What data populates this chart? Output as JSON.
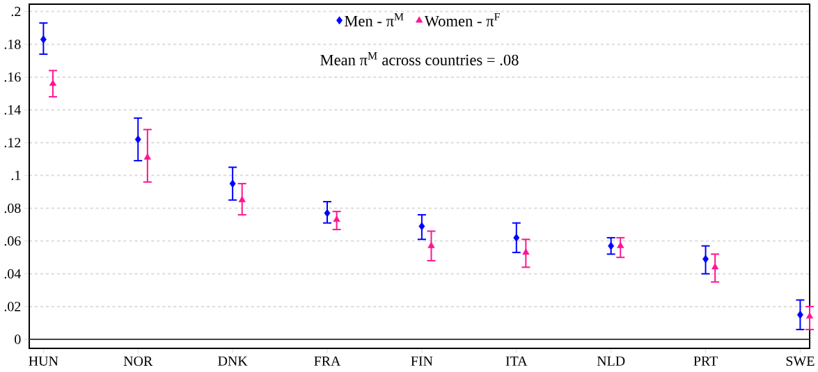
{
  "chart_data": {
    "type": "scatter",
    "categories": [
      "HUN",
      "NOR",
      "DNK",
      "FRA",
      "FIN",
      "ITA",
      "NLD",
      "PRT",
      "SWE"
    ],
    "series": [
      {
        "name": "Men - π$^{M}$",
        "color": "#0000ff",
        "marker": "diamond",
        "values": [
          0.183,
          0.122,
          0.095,
          0.077,
          0.069,
          0.062,
          0.057,
          0.049,
          0.015
        ],
        "errors": [
          [
            0.174,
            0.193
          ],
          [
            0.109,
            0.135
          ],
          [
            0.085,
            0.105
          ],
          [
            0.071,
            0.084
          ],
          [
            0.061,
            0.076
          ],
          [
            0.053,
            0.071
          ],
          [
            0.052,
            0.062
          ],
          [
            0.04,
            0.057
          ],
          [
            0.006,
            0.024
          ]
        ]
      },
      {
        "name": "Women - π$^{F}$",
        "color": "#ff1493",
        "marker": "triangle",
        "values": [
          0.156,
          0.111,
          0.085,
          0.073,
          0.057,
          0.053,
          0.057,
          0.044,
          0.014
        ],
        "errors": [
          [
            0.148,
            0.164
          ],
          [
            0.096,
            0.128
          ],
          [
            0.076,
            0.095
          ],
          [
            0.067,
            0.078
          ],
          [
            0.048,
            0.066
          ],
          [
            0.044,
            0.061
          ],
          [
            0.05,
            0.062
          ],
          [
            0.035,
            0.052
          ],
          [
            0.006,
            0.02
          ]
        ]
      }
    ],
    "ylim": [
      -0.0055,
      0.2045
    ],
    "yticks": [
      {
        "value": 0,
        "label": "0"
      },
      {
        "value": 0.02,
        "label": ".02"
      },
      {
        "value": 0.04,
        "label": ".04"
      },
      {
        "value": 0.06,
        "label": ".06"
      },
      {
        "value": 0.08,
        "label": ".08"
      },
      {
        "value": 0.1,
        "label": ".1"
      },
      {
        "value": 0.12,
        "label": ".12"
      },
      {
        "value": 0.14,
        "label": ".14"
      },
      {
        "value": 0.16,
        "label": ".16"
      },
      {
        "value": 0.18,
        "label": ".18"
      },
      {
        "value": 0.2,
        "label": ".2"
      }
    ],
    "grid": "y",
    "legend": "top",
    "ref_lines": [
      {
        "axis": "y",
        "value": 0,
        "color": "#444444"
      }
    ],
    "annotations": [
      "Mean π$^{M}$ across countries = .08"
    ]
  }
}
